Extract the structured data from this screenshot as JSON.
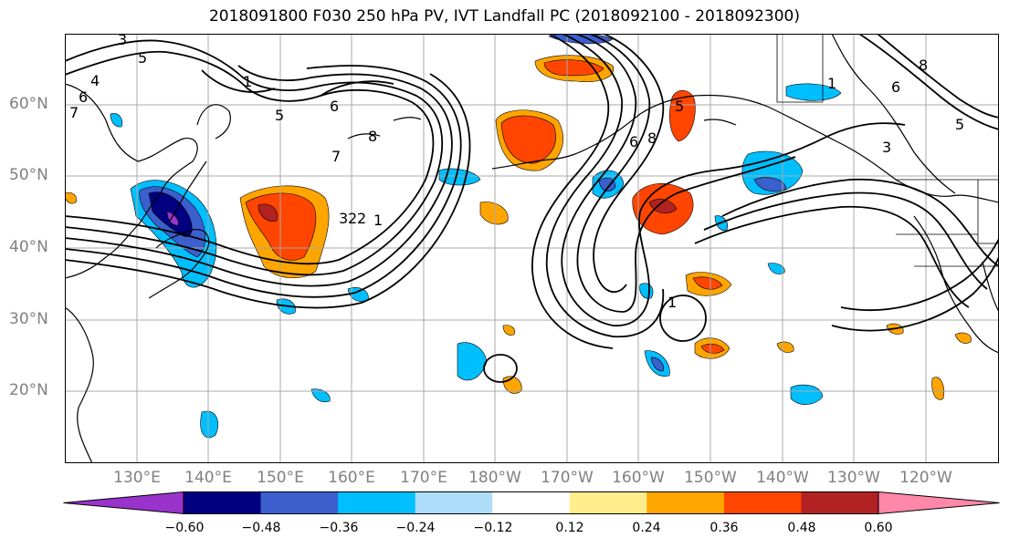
{
  "title": "2018091800 F030 250 hPa PV, IVT Landfall PC (2018092100 - 2018092300)",
  "lat_labels": [
    "60°N",
    "50°N",
    "40°N",
    "30°N",
    "20°N"
  ],
  "lon_labels": [
    "130°E",
    "140°E",
    "150°E",
    "160°E",
    "170°E",
    "180°W",
    "170°W",
    "160°W",
    "150°W",
    "140°W",
    "130°W",
    "120°W"
  ],
  "colorbar": {
    "colors": [
      "#9933cc",
      "#000080",
      "#3b5fcd",
      "#00bfff",
      "#afdefa",
      "#ffffff",
      "#ffec8b",
      "#ffa500",
      "#ff4500",
      "#b22222",
      "#ff88aa"
    ],
    "tick_labels": [
      "−0.60",
      "−0.48",
      "−0.36",
      "−0.24",
      "−0.12",
      "0.12",
      "0.24",
      "0.36",
      "0.48",
      "0.60"
    ]
  },
  "contour_labels": [
    "3",
    "5",
    "6",
    "4",
    "7",
    "1",
    "2",
    "5",
    "6",
    "7",
    "8",
    "3",
    "2",
    "1",
    "6",
    "8",
    "5",
    "6",
    "1",
    "8",
    "3",
    "5",
    "1"
  ]
}
